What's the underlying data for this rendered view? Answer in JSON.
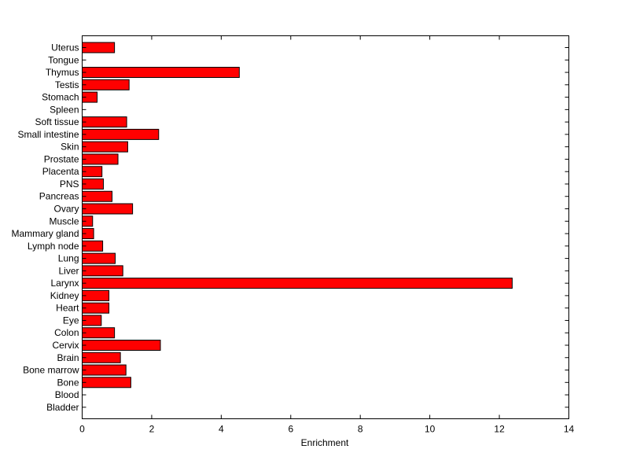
{
  "chart_data": {
    "type": "bar",
    "orientation": "horizontal",
    "xlabel": "Enrichment",
    "xlim": [
      0,
      14
    ],
    "xticks": [
      0,
      2,
      4,
      6,
      8,
      10,
      12,
      14
    ],
    "bar_color": "#ff0000",
    "edge_color": "#000000",
    "categories": [
      "Uterus",
      "Tongue",
      "Thymus",
      "Testis",
      "Stomach",
      "Spleen",
      "Soft tissue",
      "Small intestine",
      "Skin",
      "Prostate",
      "Placenta",
      "PNS",
      "Pancreas",
      "Ovary",
      "Muscle",
      "Mammary gland",
      "Lymph node",
      "Lung",
      "Liver",
      "Larynx",
      "Kidney",
      "Heart",
      "Eye",
      "Colon",
      "Cervix",
      "Brain",
      "Bone marrow",
      "Bone",
      "Blood",
      "Bladder"
    ],
    "values": [
      0.93,
      0,
      4.52,
      1.35,
      0.43,
      0,
      1.28,
      2.2,
      1.31,
      1.03,
      0.57,
      0.61,
      0.86,
      1.45,
      0.3,
      0.33,
      0.59,
      0.95,
      1.17,
      12.37,
      0.77,
      0.77,
      0.55,
      0.93,
      2.25,
      1.1,
      1.26,
      1.4,
      0,
      0
    ]
  }
}
